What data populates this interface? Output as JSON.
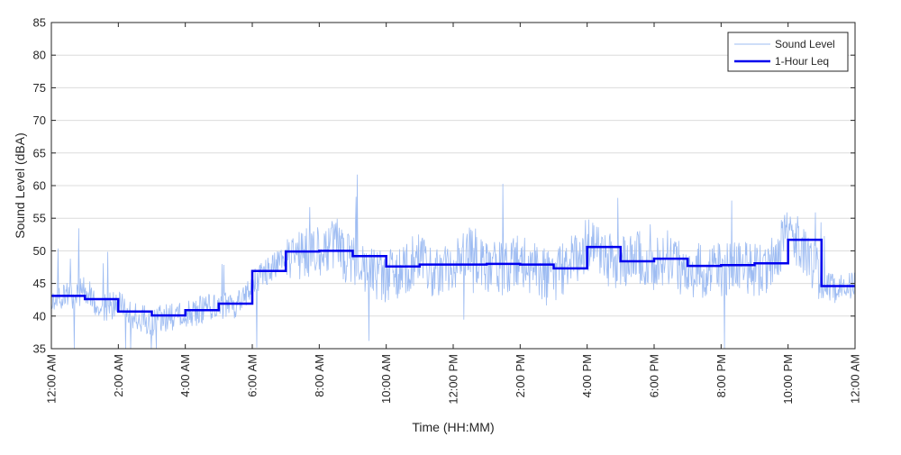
{
  "chart_data": {
    "type": "line",
    "xlabel": "Time (HH:MM)",
    "ylabel": "Sound Level (dBA)",
    "ylim": [
      35,
      85
    ],
    "xlim": [
      0,
      24
    ],
    "x_unit": "hours since 12:00 AM",
    "yticks": [
      35,
      40,
      45,
      50,
      55,
      60,
      65,
      70,
      75,
      80,
      85
    ],
    "xticks": [
      {
        "x": 0,
        "label": "12:00 AM"
      },
      {
        "x": 2,
        "label": "2:00 AM"
      },
      {
        "x": 4,
        "label": "4:00 AM"
      },
      {
        "x": 6,
        "label": "6:00 AM"
      },
      {
        "x": 8,
        "label": "8:00 AM"
      },
      {
        "x": 10,
        "label": "10:00 AM"
      },
      {
        "x": 12,
        "label": "12:00 PM"
      },
      {
        "x": 14,
        "label": "2:00 PM"
      },
      {
        "x": 16,
        "label": "4:00 PM"
      },
      {
        "x": 18,
        "label": "6:00 PM"
      },
      {
        "x": 20,
        "label": "8:00 PM"
      },
      {
        "x": 22,
        "label": "10:00 PM"
      },
      {
        "x": 24,
        "label": "12:00 AM"
      }
    ],
    "grid": "horizontal",
    "legend_position": "top-right",
    "series": [
      {
        "name": "Sound Level",
        "color": "#9ebcf2",
        "style": "thin noisy line",
        "x": [
          0,
          0.5,
          1,
          1.5,
          2,
          2.5,
          3,
          3.5,
          4,
          4.5,
          5,
          5.5,
          6,
          6.5,
          7,
          7.5,
          8,
          8.5,
          9,
          9.5,
          10,
          10.5,
          11,
          11.5,
          12,
          12.5,
          13,
          13.5,
          14,
          14.5,
          15,
          15.5,
          16,
          16.5,
          17,
          17.5,
          18,
          18.5,
          19,
          19.5,
          20,
          20.5,
          21,
          21.5,
          22,
          22.5,
          23,
          23.5,
          24
        ],
        "values": [
          42,
          43,
          44,
          41,
          42,
          40,
          39,
          40,
          40,
          41,
          42,
          41,
          45,
          47,
          49,
          50,
          50,
          51,
          48,
          47,
          46,
          47,
          49,
          46,
          47,
          50,
          48,
          47,
          49,
          47,
          46,
          48,
          51,
          49,
          48,
          49,
          48,
          48,
          47,
          47,
          47,
          48,
          47,
          48,
          53,
          50,
          45,
          44,
          45
        ],
        "min": 35,
        "max": 66.5
      },
      {
        "name": "1-Hour Leq",
        "color": "#0000ee",
        "style": "step",
        "x": [
          0,
          1,
          2,
          3,
          4,
          5,
          6,
          7,
          8,
          9,
          10,
          11,
          12,
          13,
          14,
          15,
          16,
          17,
          18,
          19,
          20,
          21,
          22,
          23,
          24
        ],
        "values": [
          43.1,
          42.6,
          40.7,
          40.1,
          40.9,
          41.9,
          46.9,
          49.9,
          50.0,
          49.2,
          47.6,
          47.9,
          47.9,
          48.0,
          47.9,
          47.3,
          50.6,
          48.4,
          48.8,
          47.7,
          47.8,
          48.1,
          51.7,
          44.6,
          44.6
        ]
      }
    ]
  }
}
